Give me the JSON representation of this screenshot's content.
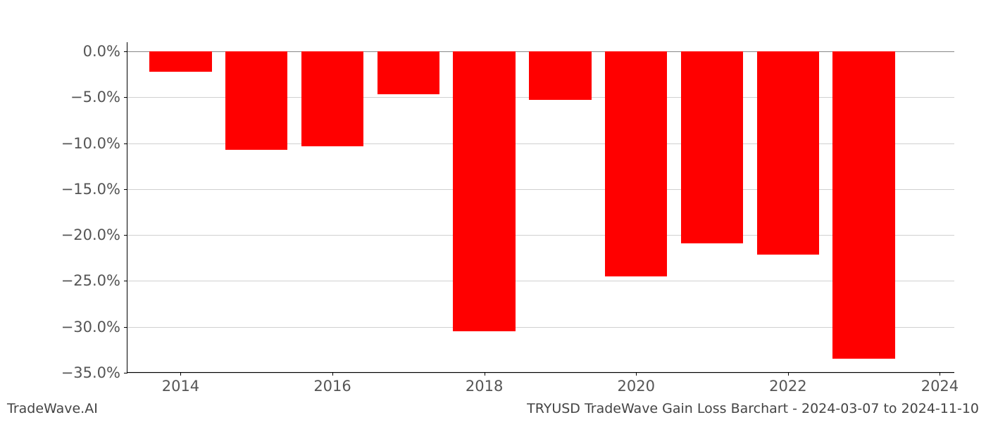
{
  "chart": {
    "type": "bar",
    "years": [
      2014,
      2015,
      2016,
      2017,
      2018,
      2019,
      2020,
      2021,
      2022,
      2023
    ],
    "values": [
      -2.2,
      -10.7,
      -10.3,
      -4.7,
      -30.5,
      -5.3,
      -24.5,
      -20.9,
      -22.1,
      -33.5
    ],
    "bar_color": "#ff0000",
    "background_color": "#ffffff",
    "grid_color": "#b0b0b0",
    "axis_color": "#000000",
    "tick_label_color": "#555555",
    "ylim": [
      -35.0,
      1.0
    ],
    "yticks": [
      0.0,
      -5.0,
      -10.0,
      -15.0,
      -20.0,
      -25.0,
      -30.0,
      -35.0
    ],
    "ytick_labels": [
      "0.0%",
      "−5.0%",
      "−10.0%",
      "−15.0%",
      "−20.0%",
      "−25.0%",
      "−30.0%",
      "−35.0%"
    ],
    "xticks": [
      2014,
      2016,
      2018,
      2020,
      2022,
      2024
    ],
    "xtick_labels": [
      "2014",
      "2016",
      "2018",
      "2020",
      "2022",
      "2024"
    ],
    "xlim": [
      2013.3,
      2024.2
    ],
    "bar_width": 0.82,
    "tick_fontsize": 21,
    "footer_fontsize": 19
  },
  "footer": {
    "left": "TradeWave.AI",
    "right": "TRYUSD TradeWave Gain Loss Barchart - 2024-03-07 to 2024-11-10"
  }
}
